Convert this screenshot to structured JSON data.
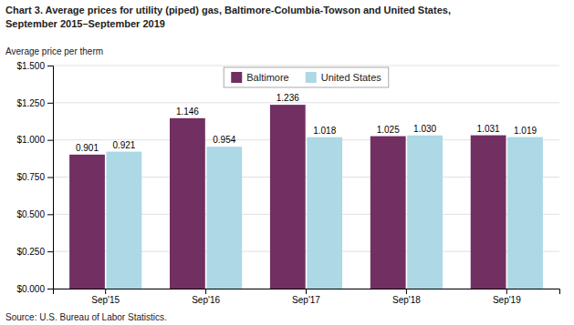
{
  "chart_data": {
    "type": "bar",
    "title": "Chart 3. Average prices for utility (piped) gas, Baltimore-Columbia-Towson and United States,",
    "subtitle": "September 2015–September 2019",
    "y_label": "Average price per therm",
    "source": "Source: U.S. Bureau of Labor Statistics.",
    "categories": [
      "Sep'15",
      "Sep'16",
      "Sep'17",
      "Sep'18",
      "Sep'19"
    ],
    "series": [
      {
        "name": "Baltimore",
        "color": "#722F62",
        "values": [
          0.901,
          1.146,
          1.236,
          1.025,
          1.031
        ],
        "value_labels": [
          "0.901",
          "1.146",
          "1.236",
          "1.025",
          "1.031"
        ]
      },
      {
        "name": "United States",
        "color": "#ADD8E6",
        "values": [
          0.921,
          0.954,
          1.018,
          1.03,
          1.019
        ],
        "value_labels": [
          "0.921",
          "0.954",
          "1.018",
          "1.030",
          "1.019"
        ]
      }
    ],
    "ylim": [
      0,
      1.5
    ],
    "yticks": [
      {
        "value": 0.0,
        "label": "$0.000"
      },
      {
        "value": 0.25,
        "label": "$0.250"
      },
      {
        "value": 0.5,
        "label": "$0.500"
      },
      {
        "value": 0.75,
        "label": "$0.750"
      },
      {
        "value": 1.0,
        "label": "$1.000"
      },
      {
        "value": 1.25,
        "label": "$1.250"
      },
      {
        "value": 1.5,
        "label": "$1.500"
      }
    ],
    "grid": true,
    "legend": "top",
    "data_labels": true
  }
}
